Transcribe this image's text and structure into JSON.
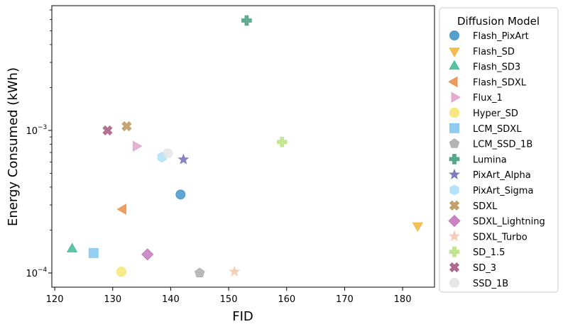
{
  "chart_data": {
    "type": "scatter",
    "xlabel": "FID",
    "ylabel": "Energy Consumed (kWh)",
    "xlim": [
      119.5,
      185.5
    ],
    "ylim": [
      7.95e-05,
      0.0075
    ],
    "yscale": "log",
    "x_ticks": [
      {
        "value": 120,
        "label": "120"
      },
      {
        "value": 130,
        "label": "130"
      },
      {
        "value": 140,
        "label": "140"
      },
      {
        "value": 150,
        "label": "150"
      },
      {
        "value": 160,
        "label": "160"
      },
      {
        "value": 170,
        "label": "170"
      },
      {
        "value": 180,
        "label": "180"
      }
    ],
    "y_ticks": [
      {
        "value": 0.0001,
        "base": "10",
        "exp": "−4"
      },
      {
        "value": 0.001,
        "base": "10",
        "exp": "−3"
      }
    ],
    "grid": false,
    "legend": {
      "title": "Diffusion Model",
      "placement": "right-outside"
    },
    "series": [
      {
        "name": "Flash_PixArt",
        "marker": "circle",
        "color": "#3a8fc4",
        "x": 141.7,
        "y": 0.000355
      },
      {
        "name": "Flash_SD",
        "marker": "triangle-down",
        "color": "#f2b233",
        "x": 182.6,
        "y": 0.000215
      },
      {
        "name": "Flash_SD3",
        "marker": "triangle-up",
        "color": "#3ab894",
        "x": 123.0,
        "y": 0.000147
      },
      {
        "name": "Flash_SDXL",
        "marker": "triangle-left",
        "color": "#e8893f",
        "x": 131.8,
        "y": 0.00028
      },
      {
        "name": "Flux_1",
        "marker": "triangle-right",
        "color": "#de9fc8",
        "x": 134.0,
        "y": 0.000775
      },
      {
        "name": "Hyper_SD",
        "marker": "octagon",
        "color": "#f5e56d",
        "x": 131.5,
        "y": 0.000102
      },
      {
        "name": "LCM_SDXL",
        "marker": "square",
        "color": "#7cc3ef",
        "x": 126.7,
        "y": 0.000138
      },
      {
        "name": "LCM_SSD_1B",
        "marker": "pentagon",
        "color": "#a8a8a8",
        "x": 145.0,
        "y": 0.0001
      },
      {
        "name": "Lumina",
        "marker": "plus",
        "color": "#3b9a77",
        "x": 153.1,
        "y": 0.0059
      },
      {
        "name": "PixArt_Alpha",
        "marker": "star",
        "color": "#6a66b3",
        "x": 142.2,
        "y": 0.000625
      },
      {
        "name": "PixArt_Sigma",
        "marker": "hexagon",
        "color": "#a9defa",
        "x": 138.5,
        "y": 0.00065
      },
      {
        "name": "SDXL",
        "marker": "x",
        "color": "#b88e4f",
        "x": 132.4,
        "y": 0.00107
      },
      {
        "name": "SDXL_Lightning",
        "marker": "diamond",
        "color": "#c070b8",
        "x": 136.0,
        "y": 0.000135
      },
      {
        "name": "SDXL_Turbo",
        "marker": "star",
        "color": "#f7c2a8",
        "x": 151.0,
        "y": 0.000102
      },
      {
        "name": "SD_1.5",
        "marker": "plus",
        "color": "#b7e07a",
        "x": 159.2,
        "y": 0.00083
      },
      {
        "name": "SD_3",
        "marker": "x",
        "color": "#a0507a",
        "x": 129.1,
        "y": 0.001
      },
      {
        "name": "SSD_1B",
        "marker": "circle",
        "color": "#e3e3e3",
        "x": 139.5,
        "y": 0.00069
      }
    ]
  }
}
